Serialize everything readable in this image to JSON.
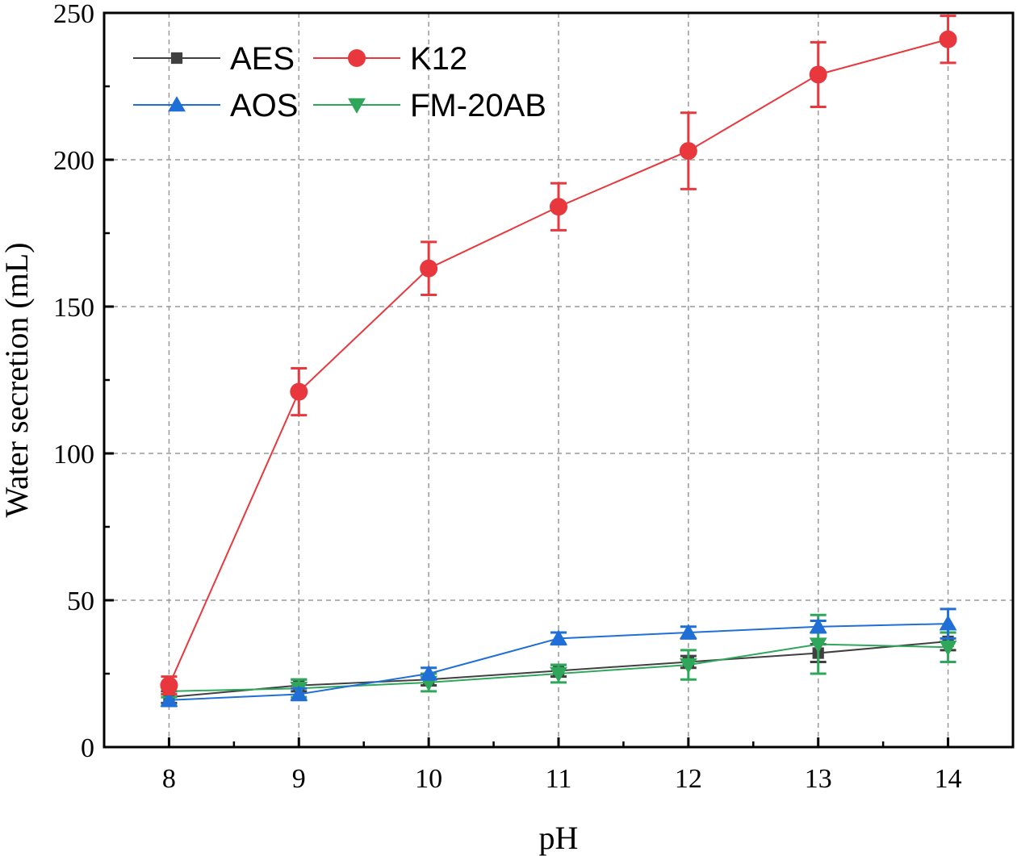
{
  "chart_data": {
    "type": "line",
    "xlabel": "pH",
    "ylabel": "Water secretion (mL)",
    "xlim": [
      7.5,
      14.5
    ],
    "ylim": [
      0,
      250
    ],
    "x": [
      8,
      9,
      10,
      11,
      12,
      13,
      14
    ],
    "x_ticks": [
      "8",
      "9",
      "10",
      "11",
      "12",
      "13",
      "14"
    ],
    "y_ticks": [
      "0",
      "50",
      "100",
      "150",
      "200",
      "250"
    ],
    "grid": true,
    "legend_position": "top-left",
    "series": [
      {
        "name": "AES",
        "color": "#404040",
        "marker": "square",
        "values": [
          17,
          21,
          23,
          26,
          29,
          32,
          36
        ],
        "errors": [
          2,
          2,
          2,
          2,
          2,
          3,
          3
        ]
      },
      {
        "name": "K12",
        "color": "#e8383d",
        "marker": "circle",
        "values": [
          21,
          121,
          163,
          184,
          203,
          229,
          241
        ],
        "errors": [
          3,
          8,
          9,
          8,
          13,
          11,
          8
        ]
      },
      {
        "name": "AOS",
        "color": "#1f6fd6",
        "marker": "triangle-up",
        "values": [
          16,
          18,
          25,
          37,
          39,
          41,
          42
        ],
        "errors": [
          2,
          2,
          2,
          2,
          2,
          2,
          5
        ]
      },
      {
        "name": "FM-20AB",
        "color": "#2fa75a",
        "marker": "triangle-down",
        "values": [
          19,
          20,
          22,
          25,
          28,
          35,
          34
        ],
        "errors": [
          2,
          3,
          3,
          3,
          5,
          10,
          5
        ]
      }
    ]
  }
}
